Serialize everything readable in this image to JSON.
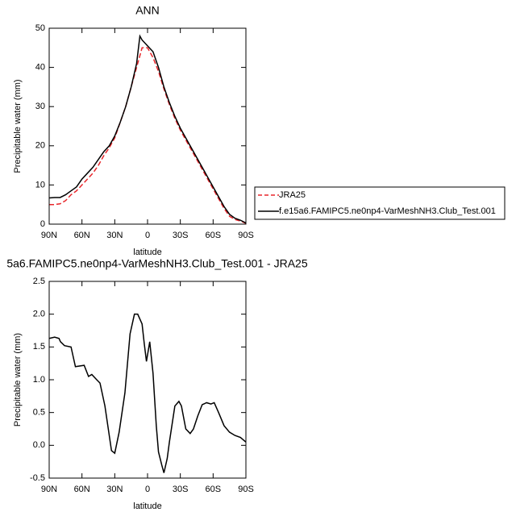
{
  "chart_data": [
    {
      "type": "line",
      "title": "ANN",
      "x_label": "latitude",
      "y_label": "Precipitable water (mm)",
      "x": [
        90,
        85,
        80,
        75,
        70,
        65,
        60,
        55,
        50,
        45,
        40,
        35,
        30,
        25,
        20,
        15,
        10,
        7,
        5,
        0,
        -5,
        -10,
        -15,
        -20,
        -25,
        -30,
        -35,
        -40,
        -45,
        -50,
        -55,
        -60,
        -65,
        -70,
        -75,
        -80,
        -85,
        -90
      ],
      "series": [
        {
          "name": "JRA25",
          "color": "#e8262b",
          "dash": true,
          "values": [
            5,
            5,
            5.2,
            6,
            7.5,
            8.5,
            10,
            11.5,
            13,
            15,
            17.5,
            19.5,
            22,
            26,
            30,
            35,
            40,
            43,
            45,
            45,
            42.5,
            39,
            34.5,
            30.5,
            27,
            24,
            21.5,
            19,
            16.5,
            14,
            11.5,
            9,
            6.5,
            4,
            2,
            1.2,
            0.8,
            0.2
          ]
        },
        {
          "name": "f.e15a6.FAMIPC5.ne0np4-VarMeshNH3.Club_Test.001",
          "color": "#000000",
          "dash": false,
          "values": [
            6.7,
            6.8,
            6.8,
            7.5,
            8.5,
            9.5,
            11.5,
            13,
            14.5,
            16.5,
            18.5,
            20,
            22.5,
            26,
            30,
            35,
            41,
            48,
            47,
            45.5,
            44,
            40,
            35,
            31,
            27.5,
            24.5,
            22,
            19.5,
            17,
            14.5,
            12,
            9.5,
            7,
            4.5,
            2.5,
            1.5,
            1,
            0.3
          ]
        }
      ],
      "legend": "right",
      "xlim": [
        90,
        -90
      ],
      "xticks": [
        {
          "value": 90,
          "label": "90N"
        },
        {
          "value": 60,
          "label": "60N"
        },
        {
          "value": 30,
          "label": "30N"
        },
        0,
        {
          "value": -30,
          "label": "30S"
        },
        {
          "value": -60,
          "label": "60S"
        },
        {
          "value": -90,
          "label": "90S"
        }
      ],
      "ylim": [
        0,
        50
      ],
      "yticks": [
        0,
        10,
        20,
        30,
        40,
        50
      ]
    },
    {
      "type": "line",
      "title": "5a6.FAMIPC5.ne0np4-VarMeshNH3.Club_Test.001 - JRA25",
      "x_label": "latitude",
      "y_label": "Precipitable water (mm)",
      "x": [
        90,
        85,
        81,
        79.7,
        76,
        70,
        66,
        58,
        54,
        51,
        46.5,
        43.5,
        39,
        33,
        30,
        26,
        20.7,
        16,
        12,
        9,
        5,
        3,
        1,
        -2,
        -5,
        -8,
        -10,
        -13,
        -15,
        -18,
        -20,
        -25,
        -28.7,
        -31,
        -35,
        -39,
        -42,
        -46,
        -50,
        -54,
        -58,
        -61,
        -65,
        -70,
        -75,
        -80,
        -85,
        -90
      ],
      "series": [
        {
          "color": "#000000",
          "dash": false,
          "values": [
            1.63,
            1.65,
            1.63,
            1.58,
            1.52,
            1.5,
            1.2,
            1.22,
            1.05,
            1.08,
            1.0,
            0.95,
            0.6,
            -0.08,
            -0.12,
            0.2,
            0.8,
            1.7,
            2.0,
            2.0,
            1.85,
            1.55,
            1.28,
            1.58,
            1.1,
            0.3,
            -0.1,
            -0.3,
            -0.42,
            -0.2,
            0.05,
            0.6,
            0.67,
            0.6,
            0.25,
            0.18,
            0.25,
            0.45,
            0.62,
            0.65,
            0.63,
            0.65,
            0.5,
            0.3,
            0.2,
            0.15,
            0.12,
            0.05
          ]
        }
      ],
      "xlim": [
        90,
        -90
      ],
      "xticks": [
        {
          "value": 90,
          "label": "90N"
        },
        {
          "value": 60,
          "label": "60N"
        },
        {
          "value": 30,
          "label": "30N"
        },
        0,
        {
          "value": -30,
          "label": "30S"
        },
        {
          "value": -60,
          "label": "60S"
        },
        {
          "value": -90,
          "label": "90S"
        }
      ],
      "ylim": [
        -0.5,
        2.5
      ],
      "yticks": [
        -0.5,
        {
          "value": 0,
          "label": "0.0"
        },
        0.5,
        {
          "value": 1,
          "label": "1.0"
        },
        1.5,
        {
          "value": 2,
          "label": "2.0"
        },
        2.5
      ]
    }
  ]
}
